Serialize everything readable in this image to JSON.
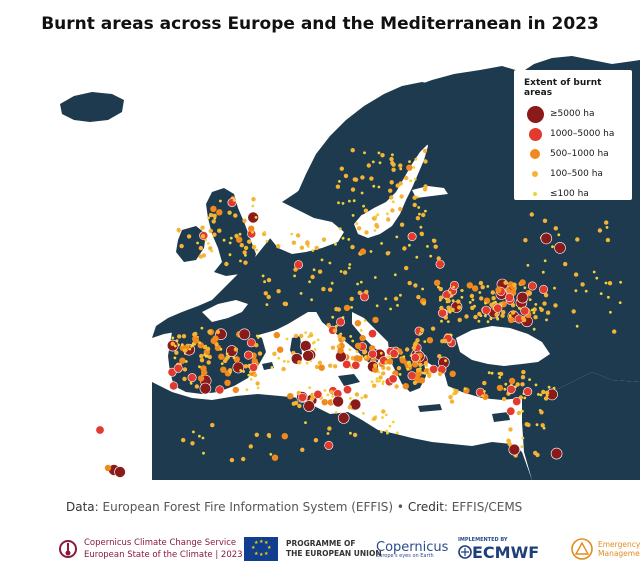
{
  "title": "Burnt areas across Europe and the Mediterranean in 2023",
  "legend": {
    "title": "Extent of burnt areas",
    "items": [
      {
        "label": "≥5000 ha",
        "color": "#8b1a1a"
      },
      {
        "label": "1000–5000 ha",
        "color": "#e23a2e"
      },
      {
        "label": "500–1000 ha",
        "color": "#f08a1e"
      },
      {
        "label": "100–500 ha",
        "color": "#f5b335"
      },
      {
        "label": "≤100 ha",
        "color": "#f2d23a"
      }
    ]
  },
  "colors": {
    "sea": "#ffffff",
    "land": "#1e3a4e",
    "coast": "#ffffff"
  },
  "source": {
    "data_key": "Data",
    "data_value": "European Forest Fire Information System (EFFIS)",
    "credit_key": "Credit",
    "credit_value": "EFFIS/CEMS"
  },
  "footer": {
    "c3s_line1": "Copernicus Climate Change Service",
    "c3s_line2": "European State of the Climate | 2023",
    "eu_line1": "PROGRAMME OF",
    "eu_line2": "THE EUROPEAN UNION",
    "copernicus": "Copernicus",
    "copernicus_tagline": "Europe's eyes on Earth",
    "ecmwf_pre": "IMPLEMENTED BY",
    "ecmwf": "ECMWF",
    "em_line1": "Emergency",
    "em_line2": "Management"
  }
}
